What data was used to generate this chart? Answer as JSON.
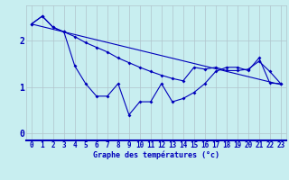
{
  "xlabel": "Graphe des températures (°c)",
  "background_color": "#c8eef0",
  "grid_color": "#b0c4cc",
  "line_color": "#0000bb",
  "spine_bottom_color": "#0000bb",
  "xlim": [
    -0.5,
    23.5
  ],
  "ylim": [
    -0.15,
    2.75
  ],
  "yticks": [
    0,
    1,
    2
  ],
  "xticks": [
    0,
    1,
    2,
    3,
    4,
    5,
    6,
    7,
    8,
    9,
    10,
    11,
    12,
    13,
    14,
    15,
    16,
    17,
    18,
    19,
    20,
    21,
    22,
    23
  ],
  "line1_x": [
    0,
    1,
    2,
    3,
    4,
    5,
    6,
    7,
    8,
    9,
    10,
    11,
    12,
    13,
    14,
    15,
    16,
    17,
    18,
    19,
    20,
    21,
    22,
    23
  ],
  "line1_y": [
    2.35,
    2.52,
    2.28,
    2.18,
    1.45,
    1.07,
    0.8,
    0.8,
    1.07,
    0.4,
    0.68,
    0.68,
    1.07,
    0.68,
    0.75,
    0.88,
    1.07,
    1.33,
    1.42,
    1.42,
    1.35,
    1.62,
    1.08,
    1.07
  ],
  "line2_x": [
    0,
    1,
    2,
    3,
    4,
    5,
    6,
    7,
    8,
    9,
    10,
    11,
    12,
    13,
    14,
    15,
    16,
    17,
    18,
    19,
    20,
    21,
    22,
    23
  ],
  "line2_y": [
    2.35,
    2.52,
    2.28,
    2.18,
    2.08,
    1.95,
    1.85,
    1.75,
    1.62,
    1.52,
    1.42,
    1.33,
    1.25,
    1.18,
    1.13,
    1.42,
    1.38,
    1.42,
    1.35,
    1.35,
    1.38,
    1.55,
    1.33,
    1.07
  ],
  "trend_x": [
    0,
    23
  ],
  "trend_y": [
    2.35,
    1.05
  ],
  "xlabel_fontsize": 6.0,
  "tick_fontsize": 5.5,
  "ytick_fontsize": 7.0
}
